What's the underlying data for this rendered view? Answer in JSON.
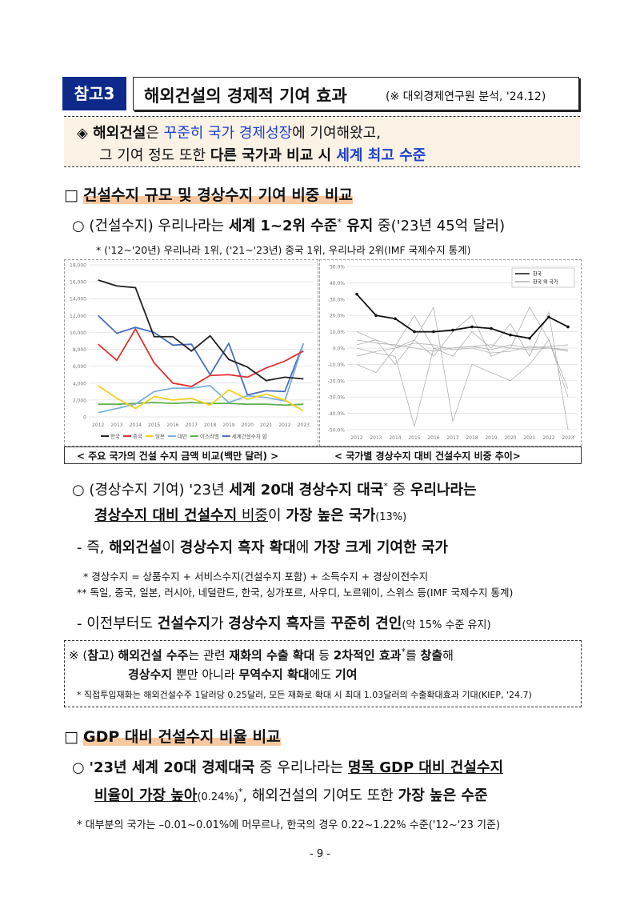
{
  "header": {
    "label": "참고3",
    "title": "해외건설의 경제적 기여 효과",
    "source": "(※ 대외경제연구원 분석, '24.12)"
  },
  "summary": [
    [
      [
        "◈ 해외건설",
        "b"
      ],
      [
        "은 ",
        ""
      ],
      [
        "꾸준히 국가 경제성장",
        "blue"
      ],
      [
        "에 기여해왔고,",
        ""
      ]
    ],
    [
      [
        "그 기여 정도 또한 ",
        ""
      ],
      [
        "다른 국가과 비교 시 ",
        "b"
      ],
      [
        "세계 최고 수준",
        "blue b"
      ]
    ]
  ],
  "section1": [
    [
      "□ ",
      ""
    ],
    [
      "건설수지 규모 및 경상수지 기여 비중 비교",
      "h"
    ]
  ],
  "bullet1": [
    [
      "○ (건설수지) 우리나라는 ",
      ""
    ],
    [
      "세계 1~2위 수준",
      "b"
    ],
    [
      "*",
      "sup"
    ],
    [
      " 유지",
      "b"
    ],
    [
      " 중('23년 45억 달러)",
      ""
    ]
  ],
  "note1": "* ('12~'20년) 우리나라 1위, ('21~'23년) 중국 1위, 우리나라 2위(IMF 국제수지 통계)",
  "captions": [
    "< 주요 국가의 건설 수지 금액 비교(백만 달러) >",
    "< 국가별 경상수지 대비 건설수지 비중 추이>"
  ],
  "charts": [
    {
      "type": "line",
      "categories": [
        "2012",
        "2013",
        "2014",
        "2015",
        "2016",
        "2017",
        "2018",
        "2019",
        "2020",
        "2021",
        "2022",
        "2023"
      ],
      "ylim": [
        0,
        18000
      ],
      "yticks": [
        0,
        {
          "value": 2000,
          "label": "2,000"
        },
        {
          "value": 4000,
          "label": "4,000"
        },
        {
          "value": 6000,
          "label": "6,000"
        },
        {
          "value": 8000,
          "label": "8,000"
        },
        {
          "value": 10000,
          "label": "10,000"
        },
        {
          "value": 12000,
          "label": "12,000"
        },
        {
          "value": 14000,
          "label": "14,000"
        },
        {
          "value": 16000,
          "label": "16,000"
        },
        {
          "value": 18000,
          "label": "18,000"
        }
      ],
      "grid": true,
      "series": [
        {
          "name": "한국",
          "color": "#222222",
          "values": [
            16200,
            15500,
            15300,
            9500,
            9500,
            7800,
            9600,
            6800,
            5900,
            4300,
            4700,
            4500
          ]
        },
        {
          "name": "중국",
          "color": "#e03030",
          "values": [
            8600,
            6700,
            10400,
            6400,
            4000,
            3600,
            4900,
            5000,
            4700,
            5800,
            6600,
            7800
          ]
        },
        {
          "name": "일본",
          "color": "#f0d020",
          "values": [
            3700,
            2200,
            1000,
            2400,
            2000,
            2200,
            1400,
            3200,
            2100,
            2700,
            2000,
            700
          ]
        },
        {
          "name": "대만",
          "color": "#7fb0e0",
          "values": [
            500,
            1000,
            1500,
            3000,
            3400,
            3400,
            3700,
            1700,
            2500,
            2300,
            1900,
            8700
          ]
        },
        {
          "name": "이스라엘",
          "color": "#60b050",
          "values": [
            1500,
            1500,
            1600,
            1700,
            1600,
            1700,
            1600,
            1600,
            1500,
            1500,
            1400,
            1500
          ]
        },
        {
          "name": "세계건설수지 합",
          "color": "#4a70c0",
          "values": [
            12000,
            9900,
            10600,
            10000,
            8500,
            8600,
            5000,
            8700,
            2600,
            3100,
            3000,
            8700
          ]
        }
      ]
    },
    {
      "type": "line",
      "categories": [
        "2012",
        "2013",
        "2014",
        "2015",
        "2016",
        "2017",
        "2018",
        "2019",
        "2020",
        "2021",
        "2022",
        "2023"
      ],
      "ylim": [
        -50,
        50
      ],
      "yticks": [
        {
          "value": -50,
          "label": "-50.0%"
        },
        {
          "value": -40,
          "label": "-40.0%"
        },
        {
          "value": -30,
          "label": "-30.0%"
        },
        {
          "value": -20,
          "label": "-20.0%"
        },
        {
          "value": -10,
          "label": "-10.0%"
        },
        {
          "value": 0,
          "label": "0.0%"
        },
        {
          "value": 10,
          "label": "10.0%"
        },
        {
          "value": 20,
          "label": "20.0%"
        },
        {
          "value": 30,
          "label": "30.0%"
        },
        {
          "value": 40,
          "label": "40.0%"
        },
        {
          "value": 50,
          "label": "50.0%"
        }
      ],
      "grid": true,
      "legend": "top-right",
      "series": [
        {
          "name": "한국",
          "color": "#111111",
          "marker": true,
          "values": [
            33,
            20,
            18,
            10,
            10,
            11,
            13,
            12,
            8,
            6,
            19,
            13
          ]
        },
        {
          "name": "한국 외 국가",
          "color": "#b0b0b0",
          "values": [
            5,
            3,
            2,
            0,
            -2,
            0,
            1,
            -1,
            2,
            0,
            1,
            2
          ]
        },
        {
          "color": "#b0b0b0",
          "values": [
            -5,
            -2,
            0,
            3,
            2,
            -1,
            0,
            -3,
            -2,
            1,
            0,
            -1
          ]
        },
        {
          "color": "#b0b0b0",
          "values": [
            0,
            -3,
            -5,
            -48,
            0,
            0,
            1,
            2,
            0,
            -1,
            0,
            -2
          ]
        },
        {
          "color": "#b0b0b0",
          "values": [
            10,
            5,
            -10,
            5,
            25,
            -45,
            -10,
            -15,
            -20,
            -10,
            5,
            -25
          ]
        },
        {
          "color": "#b0b0b0",
          "values": [
            -10,
            -15,
            0,
            5,
            -5,
            10,
            20,
            -5,
            0,
            25,
            5,
            -30
          ]
        },
        {
          "color": "#b0b0b0",
          "values": [
            2,
            5,
            1,
            20,
            0,
            -5,
            10,
            0,
            15,
            -5,
            22,
            -50
          ]
        }
      ]
    }
  ],
  "bullet2": [
    [
      [
        "○ (경상수지 기여) '23년 ",
        ""
      ],
      [
        "세계 20대 경상수지 대국",
        "b"
      ],
      [
        "*",
        "sup"
      ],
      [
        " 중 ",
        ""
      ],
      [
        "우리나라는",
        "b"
      ]
    ],
    [
      [
        "경상수지 대비 건설수지",
        "b u"
      ],
      [
        " 비중",
        "u"
      ],
      [
        "이 ",
        ""
      ],
      [
        "가장 높은 국가",
        "b"
      ],
      [
        "(13%)",
        "sm"
      ]
    ]
  ],
  "dash1": [
    [
      "- 즉, ",
      ""
    ],
    [
      "해외건설",
      "b"
    ],
    [
      "이 ",
      ""
    ],
    [
      "경상수지 흑자 확대",
      "b"
    ],
    [
      "에 ",
      ""
    ],
    [
      "가장 크게 기여한 국가",
      "b"
    ]
  ],
  "notes2": [
    "* 경상수지 = 상품수지 + 서비스수지(건설수지 포함) + 소득수지 + 경상이전수지",
    "** 독일, 중국, 일본, 러시아, 네덜란드, 한국, 싱가포르, 사우디, 노르웨이, 스위스 등(IMF 국제수지 통계)"
  ],
  "dash2": [
    [
      "- 이전부터도 ",
      ""
    ],
    [
      "건설수지",
      "b"
    ],
    [
      "가 ",
      ""
    ],
    [
      "경상수지 흑자",
      "b"
    ],
    [
      "를 ",
      ""
    ],
    [
      "꾸준히 견인",
      "b"
    ],
    [
      "(약 15% 수준 유지)",
      "sm"
    ]
  ],
  "box": [
    [
      [
        "※ (",
        ""
      ],
      [
        "참고",
        "b"
      ],
      [
        ") ",
        ""
      ],
      [
        "해외건설 수주",
        "b"
      ],
      [
        "는 관련 ",
        ""
      ],
      [
        "재화의 수출 확대",
        "b"
      ],
      [
        " 등 ",
        ""
      ],
      [
        "2차적인 효과",
        "b"
      ],
      [
        "*",
        "sup"
      ],
      [
        "를 ",
        ""
      ],
      [
        "창출",
        "b"
      ],
      [
        "해",
        ""
      ]
    ],
    [
      [
        "경상수지",
        "b"
      ],
      [
        " 뿐만 아니라 ",
        ""
      ],
      [
        "무역수지 확대",
        "b"
      ],
      [
        "에도 ",
        ""
      ],
      [
        "기여",
        "b"
      ]
    ]
  ],
  "box_note": "* 직접투입재화는 해외건설수주 1달러당 0.25달러, 모든 재화로 확대 시 최대 1.03달러의 수출확대효과 기대(KIEP, '24.7)",
  "section2": [
    [
      "□ ",
      ""
    ],
    [
      "GDP 대비 건설수지 비율 비교",
      "h"
    ]
  ],
  "bullet3": [
    [
      [
        "○ ",
        ""
      ],
      [
        "'23년 세계 20대 경제대국",
        "b"
      ],
      [
        " 중 우리나라는 ",
        ""
      ],
      [
        "명목 GDP 대비 건설수지",
        "b u"
      ]
    ],
    [
      [
        "비율이 가장 높아",
        "b u"
      ],
      [
        "(0.24%)",
        "sm"
      ],
      [
        "*",
        "sup"
      ],
      [
        ", ",
        ""
      ],
      [
        "해외건설",
        ""
      ],
      [
        "의 기여도 또한 ",
        ""
      ],
      [
        "가장 높은 수준",
        "b"
      ]
    ]
  ],
  "note3": "* 대부분의 국가는 –0.01~0.01%에 머무르나, 한국의 경우 0.22~1.22% 수준('12~'23 기준)",
  "page_number": "- 9 -"
}
